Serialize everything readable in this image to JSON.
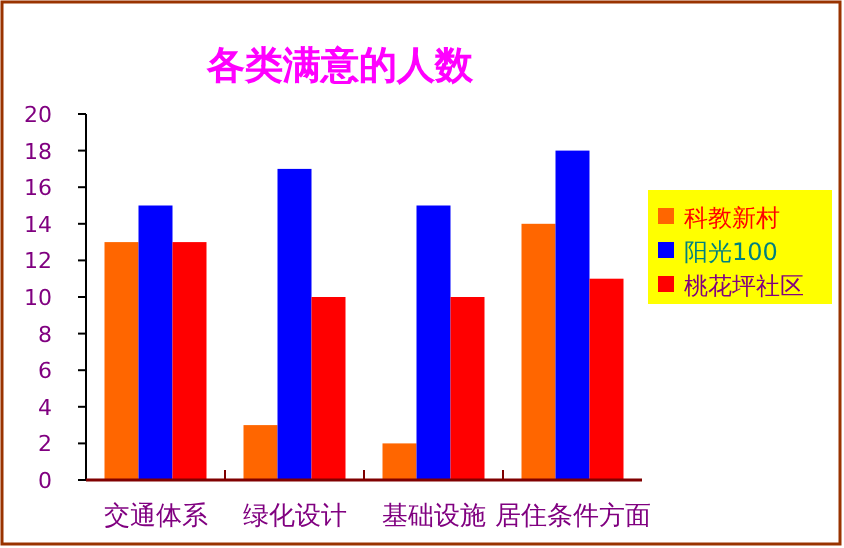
{
  "chart_data": {
    "type": "bar",
    "title": "各类满意的人数",
    "categories": [
      "交通体系",
      "绿化设计",
      "基础设施",
      "居住条件方面"
    ],
    "series": [
      {
        "name": "科教新村",
        "color": "#ff6600",
        "values": [
          13,
          3,
          2,
          14
        ]
      },
      {
        "name": "阳光100",
        "color": "#0000ff",
        "values": [
          15,
          17,
          15,
          18
        ]
      },
      {
        "name": "桃花坪社区",
        "color": "#ff0000",
        "values": [
          13,
          10,
          10,
          11
        ]
      }
    ],
    "ylim": [
      0,
      20
    ],
    "yticks": [
      0,
      2,
      4,
      6,
      8,
      10,
      12,
      14,
      16,
      18,
      20
    ],
    "grid": false,
    "legend": "right"
  }
}
